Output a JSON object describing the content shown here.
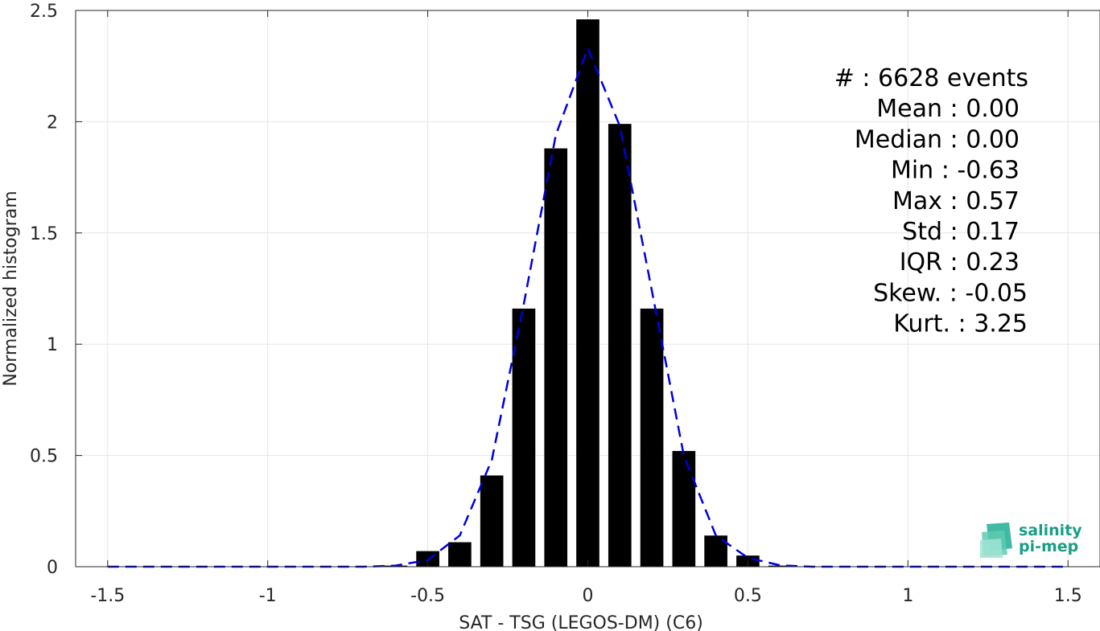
{
  "chart_data": {
    "type": "bar",
    "xlabel": "SAT - TSG (LEGOS-DM) (C6)",
    "ylabel": "Normalized histogram",
    "xlim": [
      -1.6,
      1.6
    ],
    "ylim": [
      0,
      2.5
    ],
    "grid": true,
    "x_ticks": [
      -1.5,
      -1,
      -0.5,
      0,
      0.5,
      1,
      1.5
    ],
    "x_tick_labels": [
      "-1.5",
      "-1",
      "-0.5",
      "0",
      "0.5",
      "1",
      "1.5"
    ],
    "y_ticks": [
      0,
      0.5,
      1,
      1.5,
      2,
      2.5
    ],
    "y_tick_labels": [
      "0",
      "0.5",
      "1",
      "1.5",
      "2",
      "2.5"
    ],
    "bars": {
      "x": [
        -0.6,
        -0.5,
        -0.4,
        -0.3,
        -0.2,
        -0.1,
        0.0,
        0.1,
        0.2,
        0.3,
        0.4,
        0.5,
        0.6
      ],
      "values": [
        0.005,
        0.07,
        0.11,
        0.41,
        1.16,
        1.88,
        2.46,
        1.99,
        1.16,
        0.52,
        0.14,
        0.05,
        0.005
      ],
      "color": "#000000"
    },
    "fit_line": {
      "style": "dashed",
      "color": "#0000dd",
      "x": [
        -1.5,
        -1.4,
        -1.3,
        -1.2,
        -1.1,
        -1.0,
        -0.9,
        -0.8,
        -0.7,
        -0.6,
        -0.5,
        -0.4,
        -0.3,
        -0.2,
        -0.1,
        0.0,
        0.1,
        0.2,
        0.3,
        0.4,
        0.5,
        0.6,
        0.7,
        0.8,
        0.9,
        1.0,
        1.1,
        1.2,
        1.3,
        1.4,
        1.5
      ],
      "y": [
        0,
        0,
        0,
        0,
        0,
        0,
        0,
        0,
        0,
        0.005,
        0.03,
        0.14,
        0.48,
        1.18,
        1.94,
        2.33,
        1.98,
        1.24,
        0.5,
        0.14,
        0.04,
        0.006,
        0,
        0,
        0,
        0,
        0,
        0,
        0,
        0,
        0
      ]
    },
    "stats": [
      {
        "label": "#  : 6628 events"
      },
      {
        "label": "Mean : 0.00"
      },
      {
        "label": "Median : 0.00"
      },
      {
        "label": "Min : -0.63"
      },
      {
        "label": "Max : 0.57"
      },
      {
        "label": "Std : 0.17"
      },
      {
        "label": "IQR : 0.23"
      },
      {
        "label": "Skew. : -0.05"
      },
      {
        "label": "Kurt. : 3.25"
      }
    ]
  },
  "logo": {
    "line1": "salinity",
    "line2": "pi-mep",
    "color_dark": "#1a9e86",
    "color_light": "#7fd6c2"
  }
}
